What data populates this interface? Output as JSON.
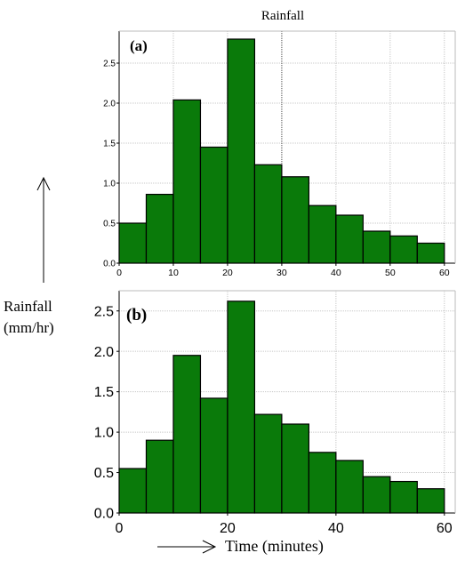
{
  "page": {
    "title": "Rainfall",
    "y_axis_label_line1": "Rainfall",
    "y_axis_label_line2": "(mm/hr)",
    "x_axis_label": "Time (minutes)"
  },
  "colors": {
    "bar_fill": "#0a7a0a",
    "bar_stroke": "#000000",
    "grid": "#c8c8c8"
  },
  "chart_data": [
    {
      "type": "bar",
      "panel_label": "(a)",
      "x": [
        0,
        5,
        10,
        15,
        20,
        25,
        30,
        35,
        40,
        45,
        50,
        55
      ],
      "bin_width": 5,
      "values": [
        0.5,
        0.86,
        2.04,
        1.45,
        2.8,
        1.23,
        1.08,
        0.72,
        0.6,
        0.4,
        0.34,
        0.25
      ],
      "xlim": [
        0,
        62
      ],
      "ylim": [
        0,
        2.9
      ],
      "xticks": [
        "0",
        "10",
        "20",
        "30",
        "40",
        "50",
        "60"
      ],
      "yticks": [
        "0.0",
        "0.5",
        "1.0",
        "1.5",
        "2.0",
        "2.5"
      ]
    },
    {
      "type": "bar",
      "panel_label": "(b)",
      "x": [
        0,
        5,
        10,
        15,
        20,
        25,
        30,
        35,
        40,
        45,
        50,
        55
      ],
      "bin_width": 5,
      "values": [
        0.55,
        0.9,
        1.95,
        1.42,
        2.62,
        1.22,
        1.1,
        0.75,
        0.65,
        0.45,
        0.39,
        0.3
      ],
      "xlim": [
        0,
        62
      ],
      "ylim": [
        0,
        2.75
      ],
      "xticks": [
        "0",
        "20",
        "40",
        "60"
      ],
      "yticks": [
        "0.0",
        "0.5",
        "1.0",
        "1.5",
        "2.0",
        "2.5"
      ]
    }
  ]
}
